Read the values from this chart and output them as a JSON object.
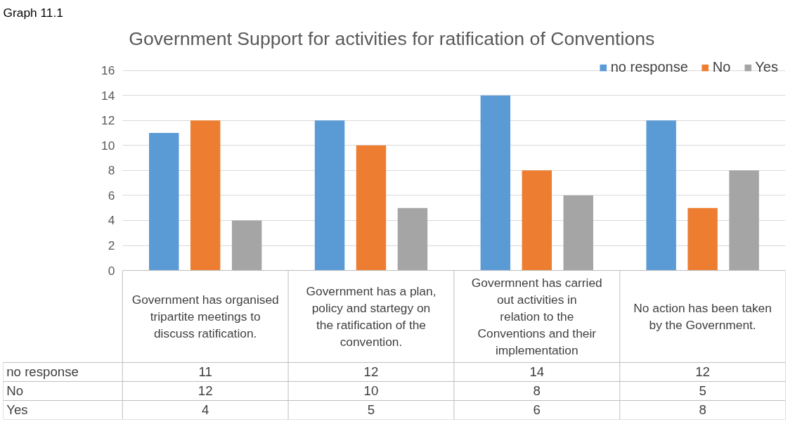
{
  "chart_data": {
    "type": "bar",
    "title": "Government  Support for activities for ratification of Conventions",
    "annotations": [
      "Graph 11.1"
    ],
    "categories": [
      "Government has organised tripartite meetings to discuss ratification.",
      "Government has a plan, policy and startegy on the ratification of the convention.",
      "Govermnent has carried out activities in relation to the Conventions and their implementation",
      "No action has been taken by the Government."
    ],
    "series": [
      {
        "name": "no response",
        "color": "#5b9bd5",
        "values": [
          11,
          12,
          14,
          12
        ]
      },
      {
        "name": "No",
        "color": "#ed7d31",
        "values": [
          12,
          10,
          8,
          5
        ]
      },
      {
        "name": "Yes",
        "color": "#a5a5a5",
        "values": [
          4,
          5,
          6,
          8
        ]
      }
    ],
    "ylim": [
      0,
      16
    ],
    "yticks": [
      0,
      2,
      4,
      6,
      8,
      10,
      12,
      14,
      16
    ],
    "grid": "y",
    "legend": "top right",
    "data_labels": true
  }
}
